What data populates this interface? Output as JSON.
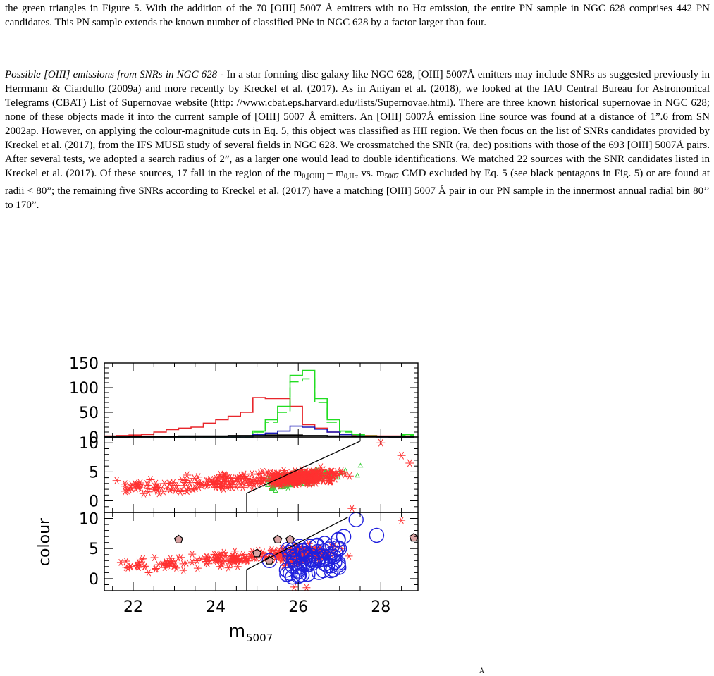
{
  "paragraph1": "the green triangles in Figure 5. With the addition of the 70 [OIII] 5007 Å emitters with no Hα emission, the entire PN sample in NGC 628 comprises 442 PN candidates. This PN sample extends the known number of classified PNe in NGC 628 by a factor larger than four.",
  "paragraph2": {
    "heading": "Possible [OIII] emissions from SNRs in NGC 628",
    "text_a": " - In a star forming disc galaxy like NGC 628, [OIII] 5007Å emitters may include SNRs as suggested previously in Herrmann & Ciardullo (2009a) and more recently by Kreckel et al. (2017). As in Aniyan et al. (2018), we looked at the IAU Central Bureau for Astronomical Telegrams (CBAT) List of Supernovae website (http: //www.cbat.eps.harvard.edu/lists/Supernovae.html). There are three known historical supernovae in NGC 628; none of these objects made it into the current sample of [OIII] 5007 Å emitters. An [OIII] 5007Å emission line source was found at a distance of 1”.6 from SN 2002ap. However, on applying the colour-magnitude cuts in Eq. 5, this object was classified as HII region. We then focus on the list of SNRs candidates provided by Kreckel et al. (2017), from the IFS MUSE study of several fields in NGC 628. We crossmatched the SNR (ra, dec) positions with those of the 693 [OIII] 5007Å pairs. After several tests, we adopted a search radius of 2”, as a larger one would lead to double identifications. We matched 22 sources with the SNR candidates listed in Kreckel et al. (2017). Of these sources, 17 fall in the region of the m",
    "sub1": "0,[OIII]",
    "text_b": " – m",
    "sub2": "0,Hα",
    "text_c": " vs. m",
    "sub3": "5007",
    "text_d": " CMD excluded by Eq. 5 (see black pentagons in Fig. 5) or are found at radii < 80”; the remaining five SNRs according to Kreckel et al. (2017) have a matching [OIII] 5007 Å pair in our PN sample in the innermost annual radial bin 80’’ to 170”."
  },
  "caption_hint": "Å",
  "chart_data": [
    {
      "type": "histogram",
      "panel": "top",
      "x_bin_edges": [
        21.3,
        21.6,
        21.9,
        22.2,
        22.5,
        22.8,
        23.1,
        23.4,
        23.7,
        24.0,
        24.3,
        24.6,
        24.9,
        25.2,
        25.5,
        25.8,
        26.1,
        26.4,
        26.7,
        27.0,
        27.3,
        27.6,
        27.9,
        28.2,
        28.5,
        28.8
      ],
      "series": [
        {
          "color": "#e8262b",
          "style": "solid",
          "values": [
            2,
            3,
            4,
            5,
            10,
            15,
            18,
            20,
            28,
            35,
            42,
            50,
            80,
            78,
            78,
            62,
            25,
            18,
            10,
            6,
            4,
            3,
            2,
            2,
            2
          ]
        },
        {
          "color": "#22dd22",
          "style": "solid",
          "values": [
            0,
            0,
            0,
            0,
            0,
            0,
            0,
            0,
            0,
            0,
            0,
            0,
            12,
            35,
            62,
            125,
            135,
            78,
            35,
            12,
            5,
            2,
            1,
            1,
            5
          ]
        },
        {
          "color": "#22dd22",
          "style": "dashed",
          "values": [
            0,
            0,
            0,
            0,
            0,
            0,
            0,
            0,
            0,
            0,
            0,
            0,
            10,
            30,
            50,
            112,
            118,
            70,
            30,
            10,
            4,
            2,
            1,
            1,
            4
          ]
        },
        {
          "color": "#1a1ab8",
          "style": "solid",
          "values": [
            0,
            0,
            0,
            0,
            0,
            0,
            0,
            0,
            0,
            0,
            0,
            0,
            5,
            8,
            12,
            22,
            20,
            16,
            10,
            5,
            2,
            1,
            0,
            0,
            0
          ]
        },
        {
          "color": "#000000",
          "style": "solid",
          "values": [
            0,
            0,
            1,
            1,
            1,
            1,
            2,
            2,
            2,
            2,
            3,
            3,
            3,
            4,
            4,
            4,
            3,
            3,
            2,
            2,
            1,
            1,
            1,
            0,
            0
          ]
        }
      ],
      "ylim": [
        0,
        150
      ],
      "yticks": [
        "0",
        "50",
        "100",
        "150"
      ]
    },
    {
      "type": "scatter",
      "panel": "middle",
      "ylim": [
        -2,
        11
      ],
      "yticks": [
        "0",
        "5",
        "10"
      ],
      "cut_line": {
        "x": [
          24.75,
          24.75,
          27.5
        ],
        "y": [
          -2,
          1.3,
          10.3
        ]
      },
      "outlier_points": [
        [
          28.0,
          10.0
        ],
        [
          28.7,
          6.5
        ],
        [
          21.9,
          2.0
        ],
        [
          21.6,
          3.5
        ],
        [
          28.5,
          7.8
        ],
        [
          27.3,
          -1.3
        ]
      ]
    },
    {
      "type": "scatter",
      "panel": "bottom",
      "ylim": [
        -2,
        11
      ],
      "yticks": [
        "0",
        "5",
        "10"
      ],
      "cut_line": {
        "x": [
          24.75,
          24.75,
          27.2
        ],
        "y": [
          -2,
          1.5,
          10.2
        ]
      },
      "pentagons": [
        [
          23.1,
          6.5
        ],
        [
          25.5,
          6.5
        ],
        [
          25.8,
          6.5
        ],
        [
          28.8,
          6.8
        ],
        [
          25.0,
          4.2
        ],
        [
          25.3,
          3.0
        ]
      ],
      "outlier_points": [
        [
          28.5,
          9.7
        ],
        [
          21.7,
          2.7
        ],
        [
          25.9,
          -1.4
        ],
        [
          26.2,
          -1.5
        ]
      ]
    }
  ],
  "x_axis": {
    "ticks": [
      "22",
      "24",
      "26",
      "28"
    ],
    "xlim": [
      21.3,
      28.9
    ]
  },
  "xlabel_main": "m",
  "xlabel_sub": "5007",
  "ylabel": "colour"
}
